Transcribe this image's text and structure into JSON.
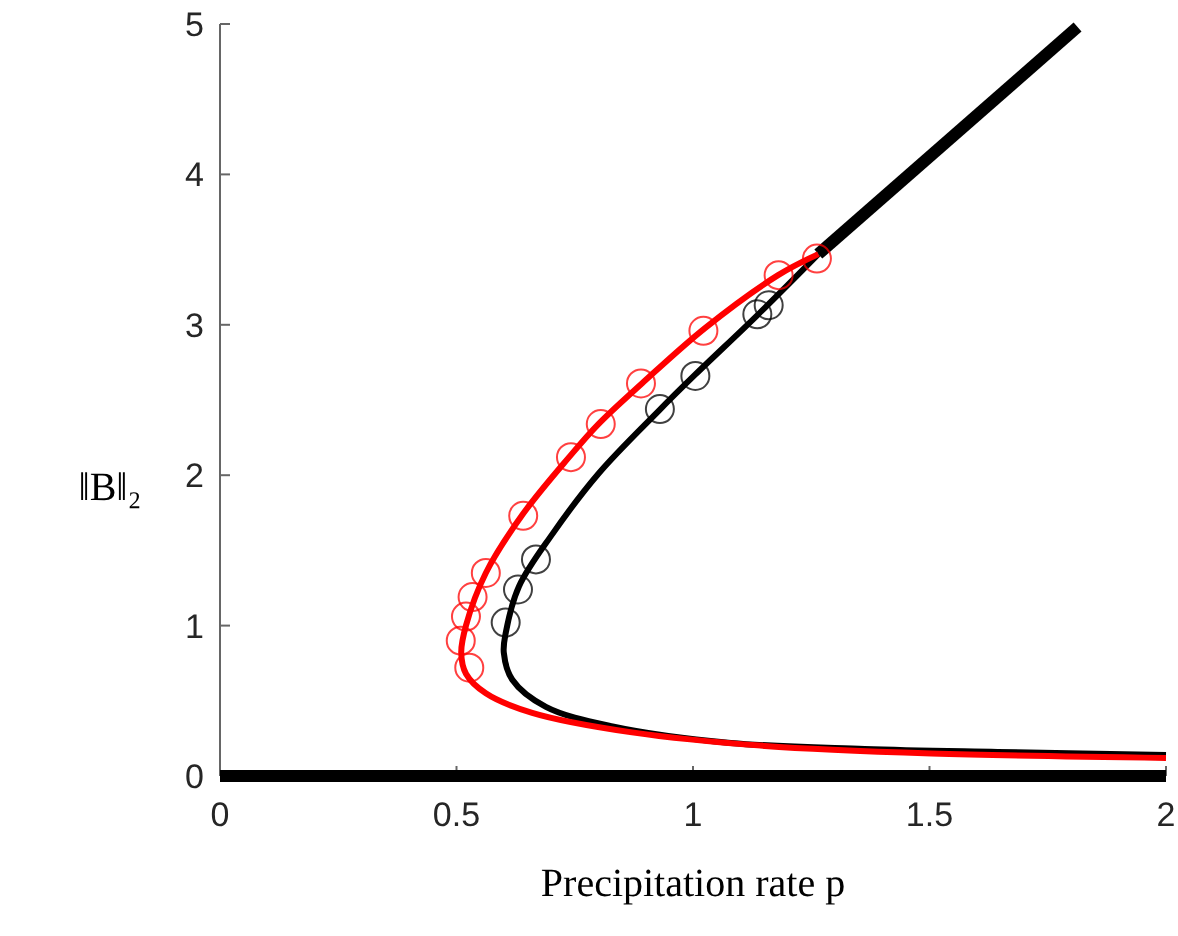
{
  "chart_data": {
    "type": "line",
    "xlabel": "Precipitation rate p",
    "ylabel": "‖B‖₂",
    "xlim": [
      0,
      2
    ],
    "ylim": [
      0,
      5
    ],
    "xticks": [
      0,
      0.5,
      1,
      1.5,
      2
    ],
    "yticks": [
      0,
      1,
      2,
      3,
      4,
      5
    ],
    "grid": false,
    "series": [
      {
        "color": "#000000",
        "x": [
          0,
          2
        ],
        "values": [
          0,
          0
        ]
      },
      {
        "color": "#000000",
        "x": [
          1.265,
          1.813
        ],
        "values": [
          3.47,
          4.98
        ]
      },
      {
        "color": "#000000",
        "x": [
          1.265,
          1.138,
          1.005,
          0.928,
          0.8,
          0.703,
          0.632,
          0.604,
          0.6,
          0.618,
          0.689,
          0.83,
          1.08,
          1.363,
          1.644,
          2.0
        ],
        "values": [
          3.47,
          3.07,
          2.67,
          2.43,
          2.01,
          1.61,
          1.26,
          0.95,
          0.82,
          0.64,
          0.46,
          0.33,
          0.22,
          0.18,
          0.16,
          0.14
        ]
      },
      {
        "color": "#ff0000",
        "x": [
          1.265,
          1.18,
          1.026,
          0.892,
          0.8,
          0.738,
          0.64,
          0.562,
          0.52,
          0.51,
          0.52,
          0.562,
          0.66,
          0.871,
          1.152,
          1.504,
          2.0
        ],
        "values": [
          3.47,
          3.33,
          2.98,
          2.61,
          2.34,
          2.12,
          1.74,
          1.35,
          1.0,
          0.82,
          0.68,
          0.55,
          0.42,
          0.29,
          0.2,
          0.15,
          0.12
        ]
      },
      {
        "type": "scatter",
        "marker": "circle",
        "color": "#ff0000",
        "x": [
          1.262,
          1.181,
          1.022,
          0.89,
          0.805,
          0.742,
          0.641,
          0.562,
          0.534,
          0.52,
          0.509,
          0.527
        ],
        "values": [
          3.44,
          3.33,
          2.96,
          2.61,
          2.34,
          2.12,
          1.73,
          1.35,
          1.19,
          1.06,
          0.9,
          0.72
        ]
      },
      {
        "type": "scatter",
        "marker": "circle",
        "color": "#000000",
        "x": [
          0.604,
          0.63,
          0.668,
          0.93,
          1.005,
          1.136,
          1.16
        ],
        "values": [
          1.02,
          1.24,
          1.44,
          2.44,
          2.66,
          3.07,
          3.13
        ]
      }
    ]
  }
}
